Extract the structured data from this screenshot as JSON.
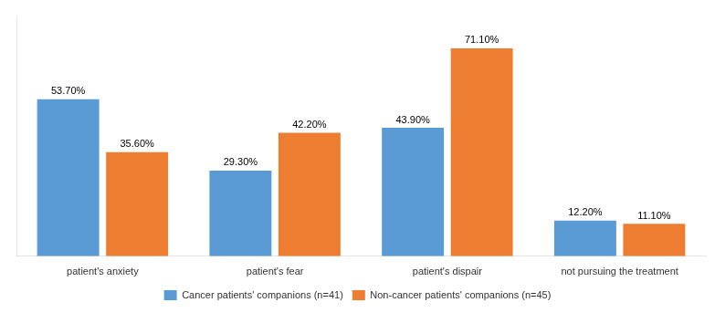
{
  "chart_data": {
    "type": "bar",
    "categories": [
      "patient's anxiety",
      "patient's fear",
      "patient's dispair",
      "not pursuing the treatment"
    ],
    "series": [
      {
        "name": "Cancer patients' companions (n=41)",
        "color": "#5B9BD5",
        "values": [
          53.7,
          29.3,
          43.9,
          12.2
        ],
        "value_labels": [
          "53.70%",
          "29.30%",
          "43.90%",
          "12.20%"
        ]
      },
      {
        "name": "Non-cancer patients' companions (n=45)",
        "color": "#ED7D31",
        "values": [
          35.6,
          42.2,
          71.1,
          11.1
        ],
        "value_labels": [
          "35.60%",
          "42.20%",
          "71.10%",
          "11.10%"
        ]
      }
    ],
    "ylim": [
      0,
      82
    ],
    "tick_labels": "x",
    "data_labels": true,
    "legend": "bottom",
    "grid": false
  }
}
